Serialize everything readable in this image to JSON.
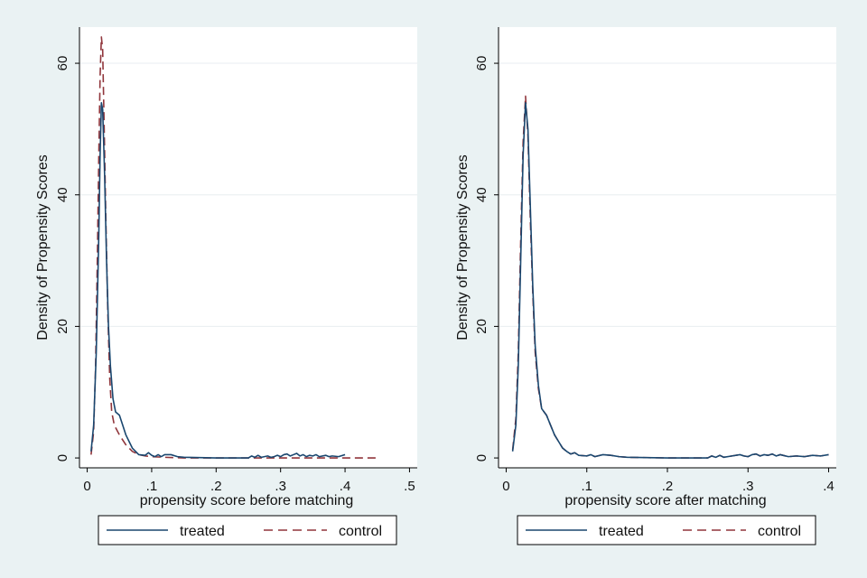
{
  "colors": {
    "background": "#eaf2f3",
    "plot_background": "#ffffff",
    "grid": "#e8eef0",
    "treated": "#1a476f",
    "control": "#90353b",
    "axis": "#000000"
  },
  "chart_data": [
    {
      "type": "line",
      "xlabel": "propensity score before matching",
      "ylabel": "Density of Propensity Scores",
      "xlim": [
        -0.012,
        0.512
      ],
      "ylim": [
        -1.5,
        65.5
      ],
      "x_ticks": [
        0,
        0.1,
        0.2,
        0.3,
        0.4,
        0.5
      ],
      "x_tick_labels": [
        "0",
        ".1",
        ".2",
        ".3",
        ".4",
        ".5"
      ],
      "y_ticks": [
        0,
        20,
        40,
        60
      ],
      "y_tick_labels": [
        "0",
        "20",
        "40",
        "60"
      ],
      "grid": true,
      "legend": {
        "position": "bottom",
        "entries": [
          "treated",
          "control"
        ]
      },
      "series": [
        {
          "name": "treated",
          "style": "solid",
          "points": [
            [
              0.006,
              1
            ],
            [
              0.01,
              5
            ],
            [
              0.014,
              16
            ],
            [
              0.018,
              34
            ],
            [
              0.02,
              46
            ],
            [
              0.022,
              54
            ],
            [
              0.024,
              53
            ],
            [
              0.027,
              43
            ],
            [
              0.03,
              30
            ],
            [
              0.033,
              20
            ],
            [
              0.036,
              14
            ],
            [
              0.04,
              9
            ],
            [
              0.044,
              7
            ],
            [
              0.05,
              6.5
            ],
            [
              0.055,
              5
            ],
            [
              0.06,
              3.5
            ],
            [
              0.065,
              2.5
            ],
            [
              0.07,
              1.5
            ],
            [
              0.075,
              1
            ],
            [
              0.08,
              0.5
            ],
            [
              0.09,
              0.4
            ],
            [
              0.095,
              0.8
            ],
            [
              0.1,
              0.4
            ],
            [
              0.105,
              0.2
            ],
            [
              0.11,
              0.5
            ],
            [
              0.115,
              0.2
            ],
            [
              0.12,
              0.5
            ],
            [
              0.13,
              0.5
            ],
            [
              0.14,
              0.2
            ],
            [
              0.15,
              0.1
            ],
            [
              0.2,
              0
            ],
            [
              0.25,
              0
            ],
            [
              0.255,
              0.3
            ],
            [
              0.26,
              0.1
            ],
            [
              0.265,
              0.4
            ],
            [
              0.27,
              0.1
            ],
            [
              0.28,
              0.3
            ],
            [
              0.285,
              0.1
            ],
            [
              0.29,
              0.2
            ],
            [
              0.295,
              0.4
            ],
            [
              0.3,
              0.2
            ],
            [
              0.305,
              0.5
            ],
            [
              0.31,
              0.6
            ],
            [
              0.315,
              0.3
            ],
            [
              0.32,
              0.5
            ],
            [
              0.325,
              0.7
            ],
            [
              0.33,
              0.3
            ],
            [
              0.335,
              0.5
            ],
            [
              0.34,
              0.2
            ],
            [
              0.345,
              0.4
            ],
            [
              0.35,
              0.3
            ],
            [
              0.355,
              0.5
            ],
            [
              0.36,
              0.2
            ],
            [
              0.37,
              0.4
            ],
            [
              0.375,
              0.2
            ],
            [
              0.38,
              0.3
            ],
            [
              0.39,
              0.2
            ],
            [
              0.4,
              0.5
            ]
          ]
        },
        {
          "name": "control",
          "style": "dash",
          "points": [
            [
              0.006,
              0.5
            ],
            [
              0.01,
              4
            ],
            [
              0.013,
              14
            ],
            [
              0.016,
              32
            ],
            [
              0.018,
              46
            ],
            [
              0.02,
              58
            ],
            [
              0.022,
              64
            ],
            [
              0.024,
              62
            ],
            [
              0.026,
              52
            ],
            [
              0.029,
              36
            ],
            [
              0.032,
              22
            ],
            [
              0.035,
              12
            ],
            [
              0.038,
              7
            ],
            [
              0.042,
              5
            ],
            [
              0.05,
              3.5
            ],
            [
              0.06,
              2
            ],
            [
              0.07,
              1
            ],
            [
              0.08,
              0.5
            ],
            [
              0.09,
              0.3
            ],
            [
              0.1,
              0.2
            ],
            [
              0.12,
              0.1
            ],
            [
              0.15,
              0
            ],
            [
              0.2,
              0
            ],
            [
              0.3,
              0
            ],
            [
              0.4,
              0
            ],
            [
              0.45,
              0
            ]
          ]
        }
      ]
    },
    {
      "type": "line",
      "xlabel": "propensity score after matching",
      "ylabel": "Density of Propensity Scores",
      "xlim": [
        -0.0095,
        0.4095
      ],
      "ylim": [
        -1.5,
        65.5
      ],
      "x_ticks": [
        0,
        0.1,
        0.2,
        0.3,
        0.4
      ],
      "x_tick_labels": [
        "0",
        ".1",
        ".2",
        ".3",
        ".4"
      ],
      "y_ticks": [
        0,
        20,
        40,
        60
      ],
      "y_tick_labels": [
        "0",
        "20",
        "40",
        "60"
      ],
      "grid": true,
      "legend": {
        "position": "bottom",
        "entries": [
          "treated",
          "control"
        ]
      },
      "series": [
        {
          "name": "treated",
          "style": "solid",
          "points": [
            [
              0.008,
              1
            ],
            [
              0.012,
              5
            ],
            [
              0.015,
              14
            ],
            [
              0.018,
              30
            ],
            [
              0.021,
              46
            ],
            [
              0.024,
              54
            ],
            [
              0.027,
              50
            ],
            [
              0.03,
              38
            ],
            [
              0.033,
              26
            ],
            [
              0.036,
              17
            ],
            [
              0.04,
              11
            ],
            [
              0.044,
              7.5
            ],
            [
              0.05,
              6.5
            ],
            [
              0.055,
              5
            ],
            [
              0.06,
              3.5
            ],
            [
              0.065,
              2.5
            ],
            [
              0.07,
              1.5
            ],
            [
              0.075,
              1
            ],
            [
              0.08,
              0.6
            ],
            [
              0.085,
              0.8
            ],
            [
              0.09,
              0.4
            ],
            [
              0.1,
              0.3
            ],
            [
              0.105,
              0.5
            ],
            [
              0.11,
              0.2
            ],
            [
              0.12,
              0.5
            ],
            [
              0.13,
              0.4
            ],
            [
              0.14,
              0.2
            ],
            [
              0.15,
              0.1
            ],
            [
              0.2,
              0
            ],
            [
              0.25,
              0
            ],
            [
              0.255,
              0.3
            ],
            [
              0.26,
              0.1
            ],
            [
              0.265,
              0.4
            ],
            [
              0.27,
              0.1
            ],
            [
              0.28,
              0.3
            ],
            [
              0.29,
              0.5
            ],
            [
              0.295,
              0.3
            ],
            [
              0.3,
              0.2
            ],
            [
              0.305,
              0.5
            ],
            [
              0.31,
              0.6
            ],
            [
              0.315,
              0.3
            ],
            [
              0.32,
              0.5
            ],
            [
              0.325,
              0.4
            ],
            [
              0.33,
              0.6
            ],
            [
              0.335,
              0.3
            ],
            [
              0.34,
              0.5
            ],
            [
              0.35,
              0.2
            ],
            [
              0.36,
              0.3
            ],
            [
              0.37,
              0.2
            ],
            [
              0.38,
              0.4
            ],
            [
              0.39,
              0.3
            ],
            [
              0.4,
              0.5
            ]
          ]
        },
        {
          "name": "control",
          "style": "dash",
          "points": [
            [
              0.008,
              1.2
            ],
            [
              0.012,
              6
            ],
            [
              0.015,
              16
            ],
            [
              0.018,
              33
            ],
            [
              0.021,
              48
            ],
            [
              0.024,
              55
            ],
            [
              0.027,
              49
            ],
            [
              0.03,
              36
            ],
            [
              0.033,
              25
            ],
            [
              0.036,
              16
            ],
            [
              0.04,
              10.5
            ],
            [
              0.044,
              7.5
            ],
            [
              0.05,
              6.5
            ],
            [
              0.055,
              5
            ],
            [
              0.06,
              3.5
            ],
            [
              0.065,
              2.5
            ],
            [
              0.07,
              1.5
            ],
            [
              0.075,
              1
            ],
            [
              0.08,
              0.6
            ],
            [
              0.085,
              0.8
            ],
            [
              0.09,
              0.4
            ],
            [
              0.1,
              0.3
            ],
            [
              0.105,
              0.5
            ],
            [
              0.11,
              0.2
            ],
            [
              0.12,
              0.5
            ],
            [
              0.13,
              0.4
            ],
            [
              0.14,
              0.2
            ],
            [
              0.15,
              0.1
            ],
            [
              0.2,
              0
            ],
            [
              0.25,
              0
            ],
            [
              0.255,
              0.3
            ],
            [
              0.26,
              0.1
            ],
            [
              0.265,
              0.4
            ],
            [
              0.27,
              0.1
            ],
            [
              0.28,
              0.3
            ],
            [
              0.29,
              0.5
            ],
            [
              0.295,
              0.3
            ],
            [
              0.3,
              0.2
            ],
            [
              0.305,
              0.5
            ],
            [
              0.31,
              0.6
            ],
            [
              0.315,
              0.3
            ],
            [
              0.32,
              0.5
            ],
            [
              0.325,
              0.4
            ],
            [
              0.33,
              0.6
            ],
            [
              0.335,
              0.3
            ],
            [
              0.34,
              0.5
            ],
            [
              0.35,
              0.2
            ],
            [
              0.36,
              0.3
            ],
            [
              0.37,
              0.2
            ],
            [
              0.38,
              0.4
            ],
            [
              0.39,
              0.3
            ],
            [
              0.4,
              0.5
            ]
          ]
        }
      ]
    }
  ]
}
